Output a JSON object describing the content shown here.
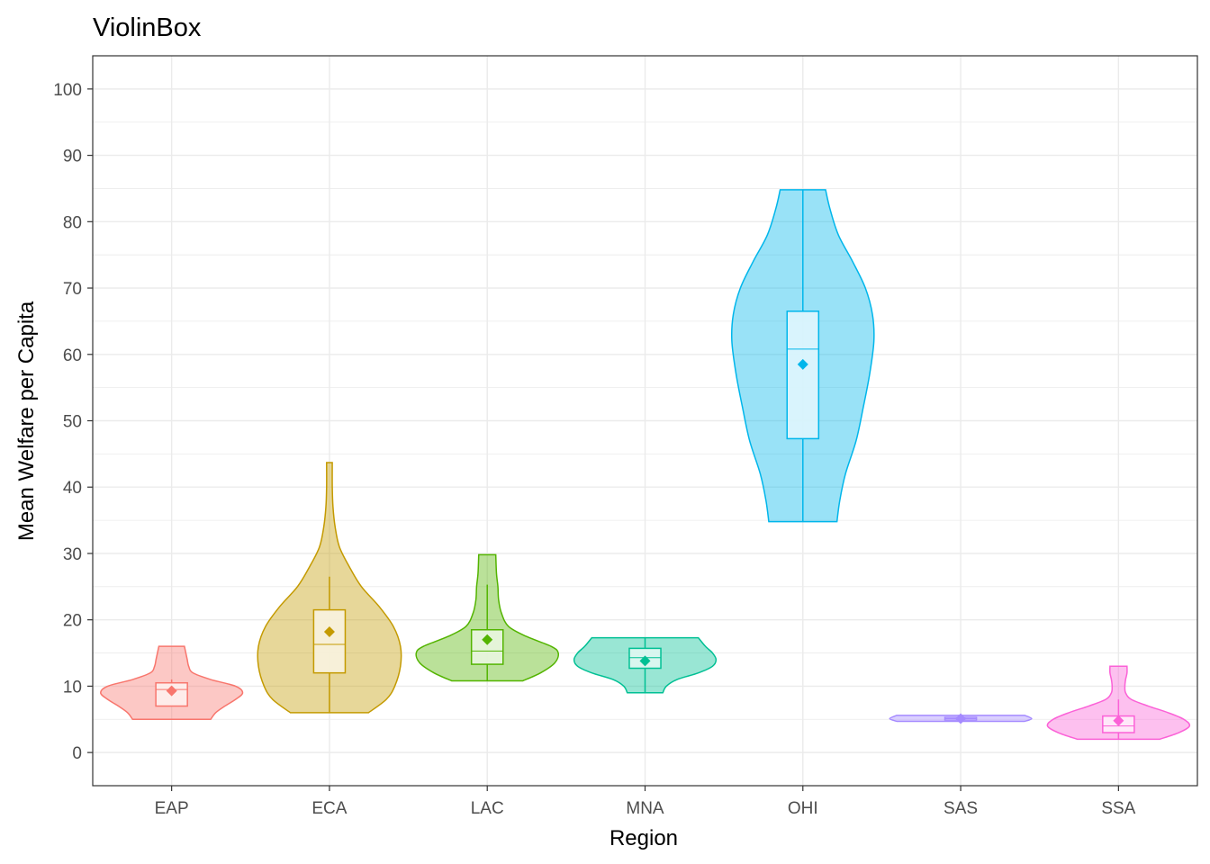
{
  "chart_data": {
    "type": "violin",
    "title": "ViolinBox",
    "xlabel": "Region",
    "ylabel": "Mean Welfare per Capita",
    "ylim": [
      -5,
      105
    ],
    "yticks": [
      0,
      10,
      20,
      30,
      40,
      50,
      60,
      70,
      80,
      90,
      100
    ],
    "grid": true,
    "legend": "none",
    "categories": [
      "EAP",
      "ECA",
      "LAC",
      "MNA",
      "OHI",
      "SAS",
      "SSA"
    ],
    "series": [
      {
        "category": "EAP",
        "color": "#F8766D",
        "min": 5,
        "q1": 7,
        "median": 9.5,
        "q3": 10.5,
        "max": 16,
        "whisker_low": 7,
        "whisker_high": 11,
        "mean": 9.3,
        "density": [
          [
            5,
            0.55
          ],
          [
            6,
            0.62
          ],
          [
            7,
            0.75
          ],
          [
            8,
            0.9
          ],
          [
            9,
            1.0
          ],
          [
            10,
            0.9
          ],
          [
            11,
            0.55
          ],
          [
            12,
            0.3
          ],
          [
            13,
            0.24
          ],
          [
            14,
            0.22
          ],
          [
            15,
            0.2
          ],
          [
            16,
            0.18
          ]
        ]
      },
      {
        "category": "ECA",
        "color": "#C49A00",
        "min": 6,
        "q1": 12,
        "median": 16.3,
        "q3": 21.5,
        "max": 43.7,
        "whisker_low": 6,
        "whisker_high": 26.5,
        "mean": 18.2,
        "density": [
          [
            6,
            0.55
          ],
          [
            8,
            0.8
          ],
          [
            10,
            0.92
          ],
          [
            13,
            1.0
          ],
          [
            16,
            1.0
          ],
          [
            19,
            0.9
          ],
          [
            22,
            0.7
          ],
          [
            25,
            0.45
          ],
          [
            28,
            0.28
          ],
          [
            31,
            0.14
          ],
          [
            34,
            0.08
          ],
          [
            37,
            0.05
          ],
          [
            40,
            0.04
          ],
          [
            43.7,
            0.04
          ]
        ]
      },
      {
        "category": "LAC",
        "color": "#53B400",
        "min": 10.8,
        "q1": 13.3,
        "median": 15.3,
        "q3": 18.5,
        "max": 29.8,
        "whisker_low": 10.8,
        "whisker_high": 25.3,
        "mean": 17.0,
        "density": [
          [
            10.8,
            0.5
          ],
          [
            12,
            0.75
          ],
          [
            13.5,
            0.95
          ],
          [
            15,
            1.0
          ],
          [
            16,
            0.9
          ],
          [
            17.5,
            0.55
          ],
          [
            19,
            0.3
          ],
          [
            21,
            0.2
          ],
          [
            23,
            0.16
          ],
          [
            25,
            0.15
          ],
          [
            27,
            0.13
          ],
          [
            29.8,
            0.12
          ]
        ]
      },
      {
        "category": "MNA",
        "color": "#00C094",
        "min": 9,
        "q1": 12.7,
        "median": 14.3,
        "q3": 15.7,
        "max": 17.3,
        "whisker_low": 9,
        "whisker_high": 17.3,
        "mean": 13.8,
        "density": [
          [
            9,
            0.25
          ],
          [
            10,
            0.3
          ],
          [
            11,
            0.45
          ],
          [
            12,
            0.75
          ],
          [
            13,
            0.95
          ],
          [
            14,
            1.0
          ],
          [
            15,
            0.95
          ],
          [
            16,
            0.85
          ],
          [
            17.3,
            0.75
          ]
        ]
      },
      {
        "category": "OHI",
        "color": "#00B6EB",
        "min": 34.8,
        "q1": 47.3,
        "median": 60.8,
        "q3": 66.5,
        "max": 84.8,
        "whisker_low": 34.8,
        "whisker_high": 84.8,
        "mean": 58.5,
        "density": [
          [
            34.8,
            0.48
          ],
          [
            38,
            0.52
          ],
          [
            42,
            0.6
          ],
          [
            47,
            0.75
          ],
          [
            52,
            0.85
          ],
          [
            57,
            0.94
          ],
          [
            62,
            1.0
          ],
          [
            66,
            0.98
          ],
          [
            70,
            0.88
          ],
          [
            74,
            0.7
          ],
          [
            78,
            0.5
          ],
          [
            82,
            0.38
          ],
          [
            84.8,
            0.32
          ]
        ]
      },
      {
        "category": "SAS",
        "color": "#A58AFF",
        "min": 4.7,
        "q1": 4.9,
        "median": 5.1,
        "q3": 5.3,
        "max": 5.6,
        "whisker_low": 4.7,
        "whisker_high": 5.6,
        "mean": 5.1,
        "density": [
          [
            4.7,
            0.9
          ],
          [
            5.1,
            1.0
          ],
          [
            5.6,
            0.9
          ]
        ]
      },
      {
        "category": "SSA",
        "color": "#FB61D7",
        "min": 2,
        "q1": 3,
        "median": 4,
        "q3": 5.5,
        "max": 13,
        "whisker_low": 2,
        "whisker_high": 8,
        "mean": 4.8,
        "density": [
          [
            2,
            0.58
          ],
          [
            3,
            0.85
          ],
          [
            4,
            1.0
          ],
          [
            5,
            0.92
          ],
          [
            6,
            0.7
          ],
          [
            7,
            0.42
          ],
          [
            8,
            0.18
          ],
          [
            9,
            0.1
          ],
          [
            10,
            0.09
          ],
          [
            11,
            0.1
          ],
          [
            12,
            0.12
          ],
          [
            13,
            0.12
          ]
        ]
      }
    ]
  }
}
